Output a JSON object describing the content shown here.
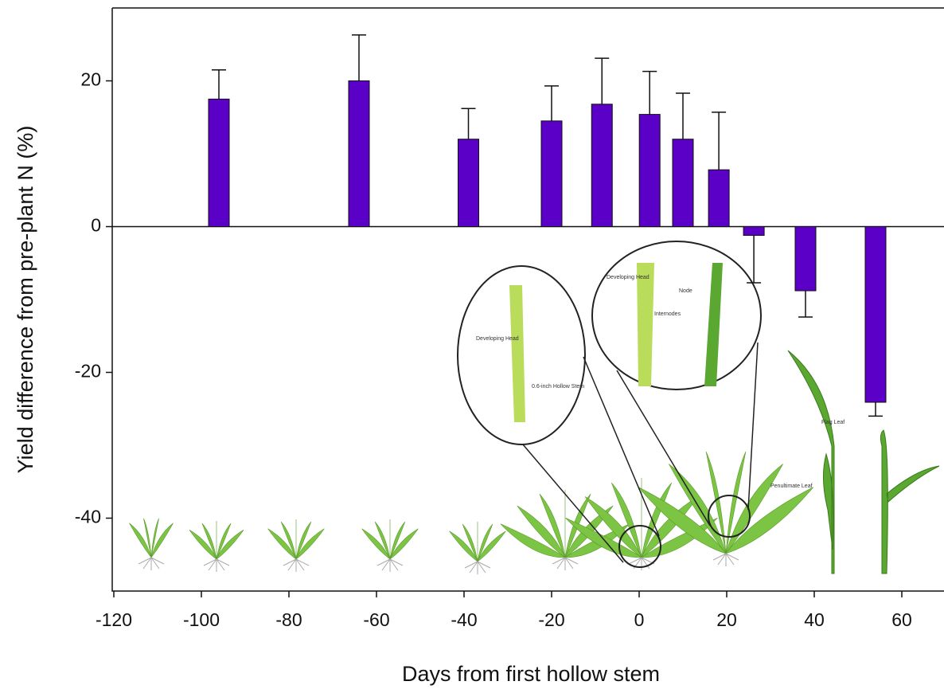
{
  "chart_data": {
    "type": "bar",
    "x_label": "Days from first hollow stem",
    "y_label": "Yield difference from pre-plant N (%)",
    "x": [
      -96,
      -64,
      -39,
      -20,
      -8.5,
      2.4,
      10,
      18.2,
      26.2,
      38,
      54
    ],
    "values": [
      17.5,
      20,
      12,
      14.5,
      16.8,
      15.4,
      12,
      7.8,
      -1.2,
      -8.8,
      -24.1
    ],
    "errors": [
      4,
      6.3,
      4.2,
      4.8,
      6.3,
      5.9,
      6.3,
      7.9,
      6.5,
      3.6,
      1.9
    ],
    "color": "#5b00c6",
    "xlim": [
      -120,
      70
    ],
    "xticks": [
      -120,
      -100,
      -80,
      -60,
      -40,
      -20,
      0,
      20,
      40,
      60
    ],
    "ylim": [
      -50,
      30
    ],
    "yticks": [
      -40,
      -20,
      0,
      20
    ],
    "annotations": [
      "Developing Head",
      "0.6-inch Hollow Stem",
      "Developing Head",
      "Internodes",
      "Node",
      "Flag Leaf",
      "Penultimate Leaf"
    ]
  }
}
